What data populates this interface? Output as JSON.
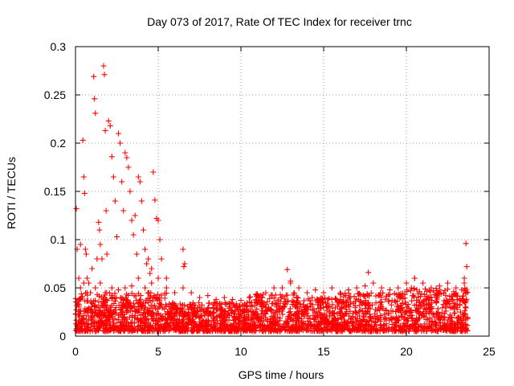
{
  "chart_data": {
    "type": "scatter",
    "title": "Day 073 of 2017, Rate Of TEC Index for receiver trnc",
    "xlabel": "GPS time / hours",
    "ylabel": "ROTI / TECUs",
    "xlim": [
      0,
      25
    ],
    "ylim": [
      0,
      0.3
    ],
    "xticks": [
      0,
      5,
      10,
      15,
      20,
      25
    ],
    "xtick_labels": [
      "0",
      "5",
      "10",
      "15",
      "20",
      "25"
    ],
    "yticks": [
      0,
      0.05,
      0.1,
      0.15,
      0.2,
      0.25,
      0.3
    ],
    "ytick_labels": [
      "0",
      "0.05",
      "0.1",
      "0.15",
      "0.2",
      "0.25",
      "0.3"
    ],
    "grid": true,
    "marker": "+",
    "color": "#ff0000",
    "series": [
      {
        "name": "ROTI",
        "x": [
          0.05,
          0.1,
          0.2,
          0.3,
          0.45,
          0.5,
          0.55,
          0.6,
          0.65,
          0.7,
          0.8,
          1.0,
          1.1,
          1.15,
          1.2,
          1.3,
          1.4,
          1.45,
          1.5,
          1.6,
          1.7,
          1.75,
          1.8,
          1.85,
          1.9,
          2.0,
          2.1,
          2.2,
          2.3,
          2.4,
          2.5,
          2.6,
          2.7,
          2.8,
          2.9,
          3.0,
          3.1,
          3.2,
          3.3,
          3.4,
          3.5,
          3.6,
          3.7,
          3.8,
          3.9,
          4.0,
          4.1,
          4.2,
          4.3,
          4.4,
          4.5,
          4.6,
          4.7,
          4.8,
          4.9,
          5.0,
          5.1,
          5.2,
          5.5,
          6.5,
          6.6,
          6.55,
          12.8,
          13.0,
          17.7,
          20.5,
          23.6,
          23.65,
          23.5,
          0.3,
          0.5,
          0.7,
          0.9,
          1.2,
          1.5,
          1.8,
          2.2,
          2.6,
          3.0,
          3.4,
          3.8,
          4.2,
          4.6,
          5.0,
          5.5,
          6.0,
          6.5,
          7.0,
          7.5,
          8.0,
          8.5,
          9.0,
          9.5,
          10.0,
          10.5,
          11.0,
          11.5,
          12.0,
          12.5,
          13.0,
          13.5,
          14.0,
          14.5,
          15.0,
          15.5,
          16.0,
          16.5,
          17.0,
          17.5,
          18.0,
          18.5,
          19.0,
          19.5,
          20.0,
          20.5,
          21.0,
          21.5,
          22.0,
          22.5,
          23.0,
          23.5
        ],
        "y": [
          0.132,
          0.09,
          0.06,
          0.095,
          0.203,
          0.165,
          0.148,
          0.09,
          0.085,
          0.06,
          0.055,
          0.07,
          0.269,
          0.246,
          0.231,
          0.08,
          0.118,
          0.11,
          0.095,
          0.08,
          0.28,
          0.271,
          0.213,
          0.13,
          0.085,
          0.223,
          0.218,
          0.186,
          0.165,
          0.14,
          0.103,
          0.21,
          0.2,
          0.16,
          0.13,
          0.19,
          0.185,
          0.175,
          0.15,
          0.12,
          0.105,
          0.125,
          0.085,
          0.165,
          0.16,
          0.14,
          0.11,
          0.09,
          0.075,
          0.08,
          0.065,
          0.07,
          0.17,
          0.141,
          0.122,
          0.12,
          0.1,
          0.08,
          0.06,
          0.09,
          0.075,
          0.072,
          0.069,
          0.057,
          0.066,
          0.06,
          0.096,
          0.072,
          0.055,
          0.05,
          0.055,
          0.045,
          0.045,
          0.05,
          0.055,
          0.045,
          0.05,
          0.048,
          0.05,
          0.052,
          0.06,
          0.05,
          0.055,
          0.06,
          0.05,
          0.045,
          0.05,
          0.045,
          0.04,
          0.042,
          0.038,
          0.04,
          0.038,
          0.037,
          0.04,
          0.042,
          0.045,
          0.05,
          0.05,
          0.055,
          0.05,
          0.045,
          0.048,
          0.045,
          0.05,
          0.045,
          0.048,
          0.05,
          0.052,
          0.055,
          0.05,
          0.048,
          0.05,
          0.055,
          0.06,
          0.055,
          0.05,
          0.052,
          0.055,
          0.05,
          0.06
        ]
      }
    ],
    "background_band": {
      "description_free": true,
      "x_start": 0,
      "x_end": 23.7,
      "y_floor": 0.005,
      "y_typical_max": 0.04
    }
  }
}
